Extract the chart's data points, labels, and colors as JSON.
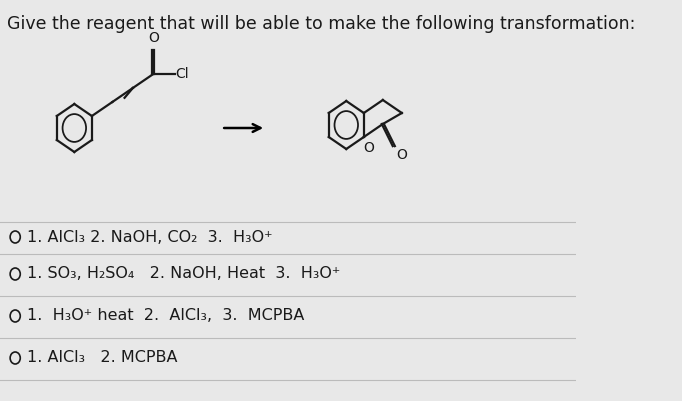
{
  "title": "Give the reagent that will be able to make the following transformation:",
  "title_fontsize": 12.5,
  "background_color": "#e8e8e8",
  "options_text": [
    [
      "O",
      "1. AlCl₃ 2. NaOH, CO₂  3.  H₃O⁺"
    ],
    [
      "O",
      "1. SO₃, H₂SO₄   2. NaOH, Heat  3.  H₃O⁺"
    ],
    [
      "O",
      "1.  H₃O⁺ heat  2.  AlCl₃,  3.  MCPBA"
    ],
    [
      "O",
      "1. AlCl₃   2. MCPBA"
    ]
  ],
  "option_fontsize": 11.5,
  "divider_color": "#bbbbbb",
  "text_color": "#1a1a1a",
  "line_color": "#1a1a1a",
  "lw": 1.6,
  "ring_r": 24
}
